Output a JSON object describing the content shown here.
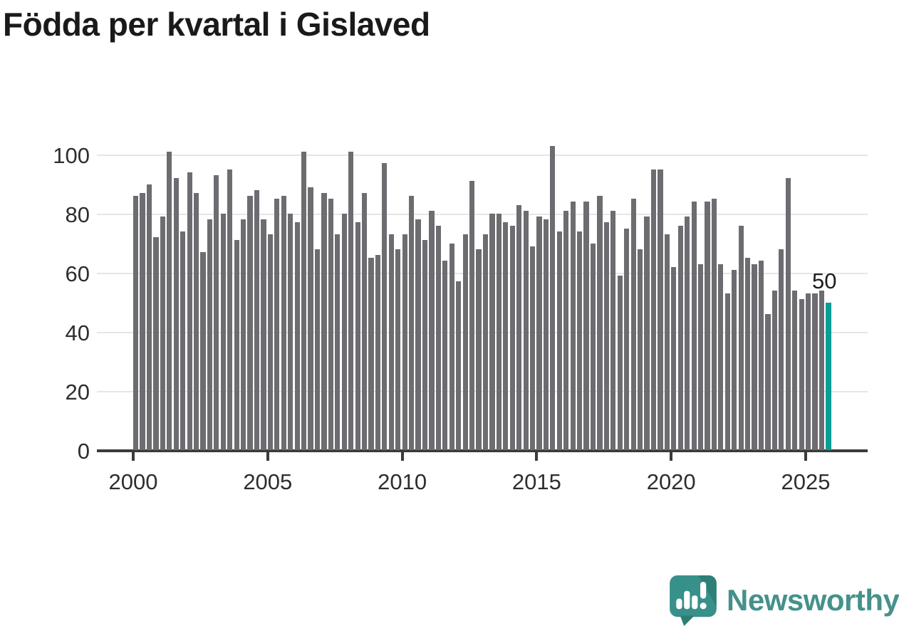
{
  "title": "Födda per kvartal i Gislaved",
  "annotation": {
    "last_value_label": "50"
  },
  "branding": {
    "logo_text": "Newsworthy"
  },
  "colors": {
    "bar": "#6c6c71",
    "highlight": "#0a9e96",
    "grid": "#e6e6e6",
    "axis": "#3b3b3b",
    "title_text": "#1a1a1a",
    "tick_text": "#2e2e2e",
    "logo_mark": "#38908a",
    "logo_mark_shade": "#2d7d74",
    "logo_text_color": "#45918c"
  },
  "chart_data": {
    "type": "bar",
    "title": "Födda per kvartal i Gislaved",
    "xlabel": "",
    "ylabel": "",
    "start_year": 2000,
    "period": "quarterly",
    "x_tick_labels": [
      "2000",
      "2005",
      "2010",
      "2015",
      "2020",
      "2025"
    ],
    "y_tick_labels": [
      "0",
      "20",
      "40",
      "60",
      "80",
      "100"
    ],
    "ylim": [
      0,
      110
    ],
    "grid": "horizontal",
    "legend": "none",
    "highlight_last_bar": true,
    "highlight_value": 50,
    "series": [
      {
        "name": "Födda per kvartal",
        "values": [
          86,
          87,
          90,
          72,
          79,
          101,
          92,
          74,
          94,
          87,
          67,
          78,
          93,
          80,
          95,
          71,
          78,
          86,
          88,
          78,
          73,
          85,
          86,
          80,
          77,
          101,
          89,
          68,
          87,
          85,
          73,
          80,
          101,
          77,
          87,
          65,
          66,
          97,
          73,
          68,
          73,
          86,
          78,
          71,
          81,
          76,
          64,
          70,
          57,
          73,
          91,
          68,
          73,
          80,
          80,
          77,
          76,
          83,
          81,
          69,
          79,
          78,
          103,
          74,
          81,
          84,
          74,
          84,
          70,
          86,
          77,
          81,
          59,
          75,
          85,
          68,
          79,
          95,
          95,
          73,
          62,
          76,
          79,
          84,
          63,
          84,
          85,
          63,
          53,
          61,
          76,
          65,
          63,
          64,
          46,
          54,
          68,
          92,
          54,
          51,
          53,
          53,
          54,
          50
        ]
      }
    ]
  }
}
